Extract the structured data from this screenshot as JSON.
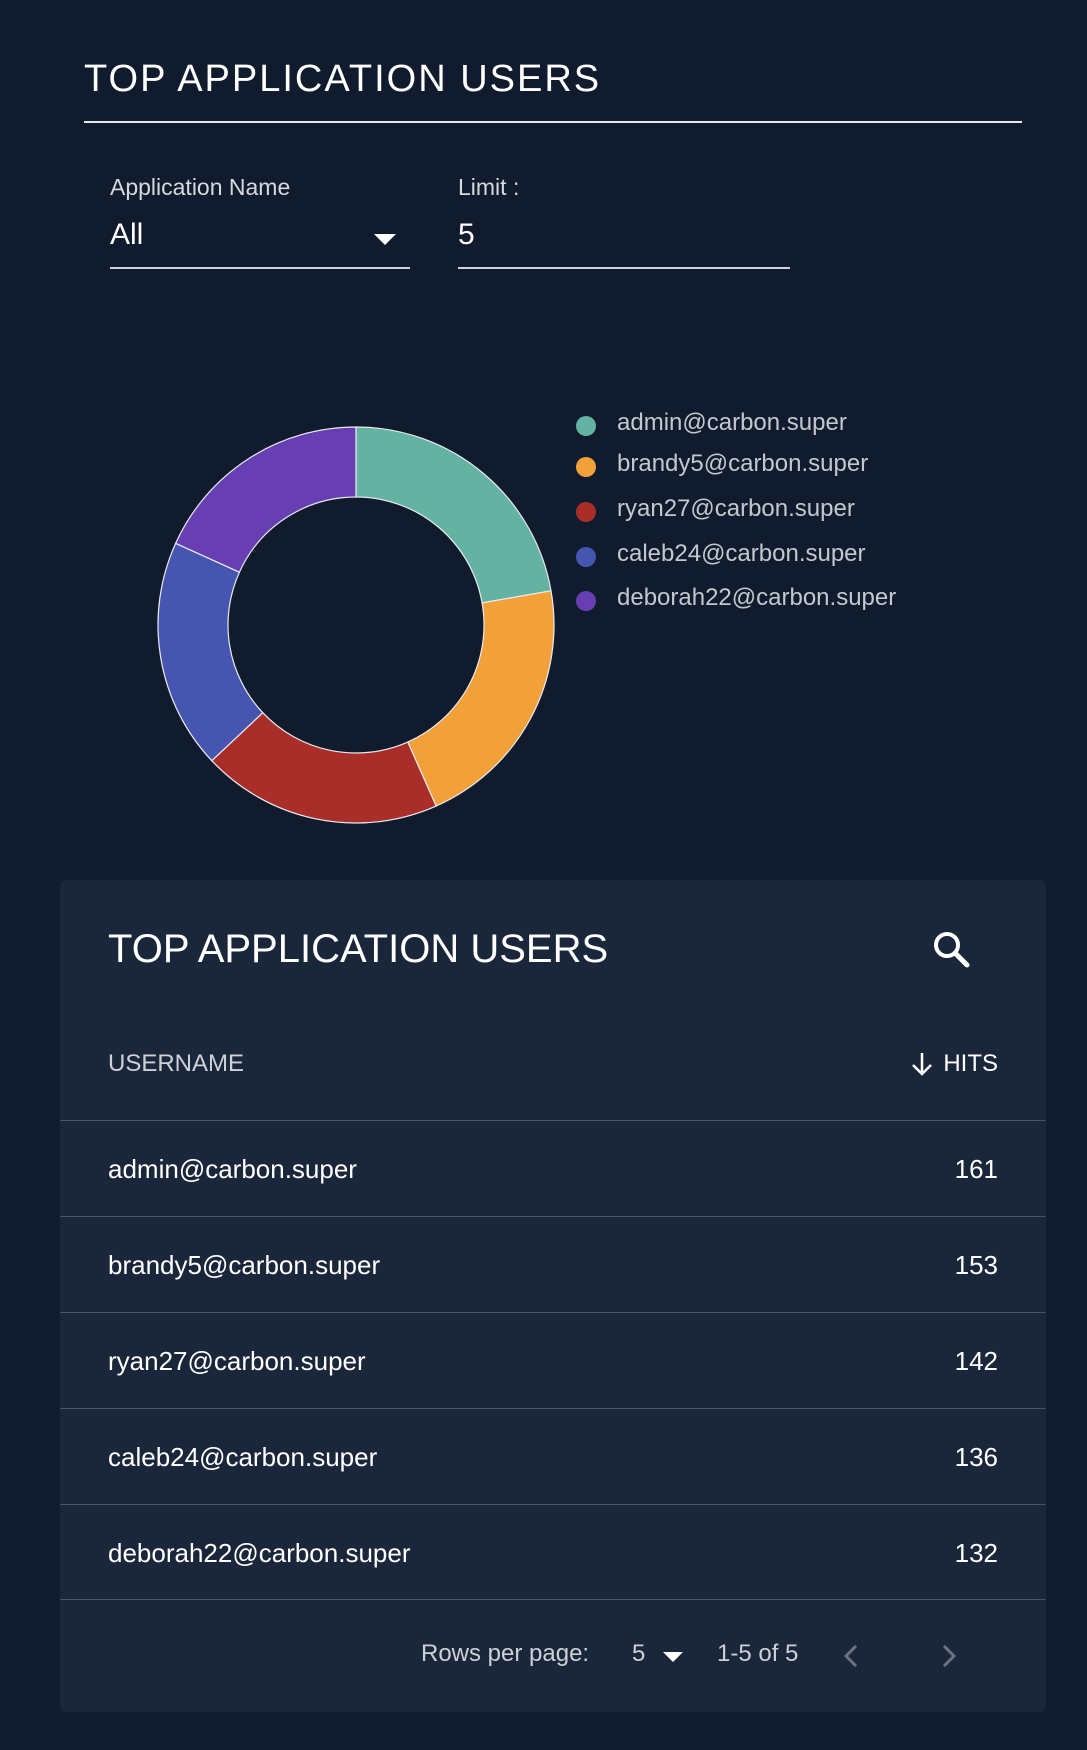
{
  "page": {
    "title": "TOP APPLICATION USERS"
  },
  "filters": {
    "application_label": "Application Name",
    "application_value": "All",
    "limit_label": "Limit :",
    "limit_value": "5"
  },
  "chart_data": {
    "type": "pie",
    "categories": [
      "admin@carbon.super",
      "brandy5@carbon.super",
      "ryan27@carbon.super",
      "caleb24@carbon.super",
      "deborah22@carbon.super"
    ],
    "values": [
      161,
      153,
      142,
      136,
      132
    ],
    "colors": [
      "#64b2a2",
      "#f2a03a",
      "#a92d28",
      "#4656b0",
      "#673fb2"
    ],
    "legend_position": "right"
  },
  "table": {
    "title": "TOP APPLICATION USERS",
    "search_icon": "search-icon",
    "columns": {
      "username": "USERNAME",
      "hits": "HITS"
    },
    "sort_icon": "arrow-down-icon",
    "rows": [
      {
        "username": "admin@carbon.super",
        "hits": "161"
      },
      {
        "username": "brandy5@carbon.super",
        "hits": "153"
      },
      {
        "username": "ryan27@carbon.super",
        "hits": "142"
      },
      {
        "username": "caleb24@carbon.super",
        "hits": "136"
      },
      {
        "username": "deborah22@carbon.super",
        "hits": "132"
      }
    ],
    "pagination": {
      "rows_per_page_label": "Rows per page:",
      "rows_per_page_value": "5",
      "range": "1-5 of 5"
    }
  }
}
